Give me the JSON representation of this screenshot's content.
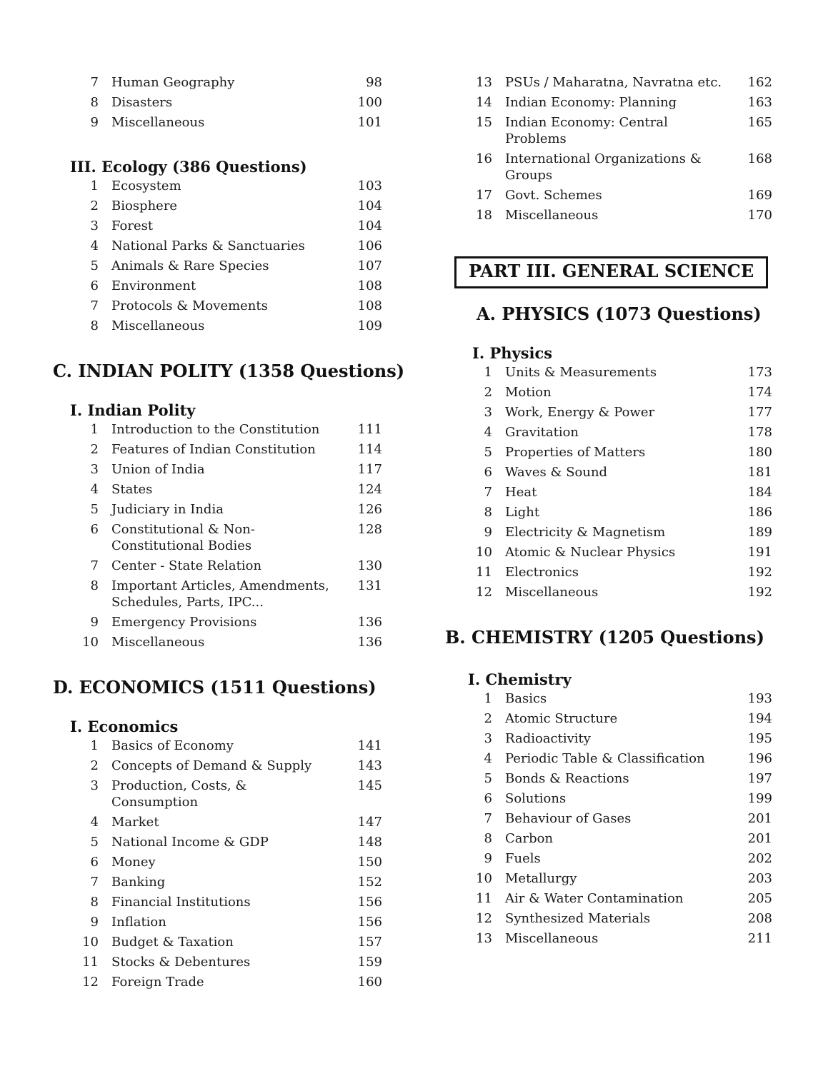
{
  "toc": {
    "columns": [
      {
        "name": "left",
        "blocks": [
          {
            "kind": "items",
            "rows": [
              {
                "num": "7",
                "title": "Human Geography",
                "page": "98"
              },
              {
                "num": "8",
                "title": "Disasters",
                "page": "100"
              },
              {
                "num": "9",
                "title": "Miscellaneous",
                "page": "101"
              }
            ]
          },
          {
            "kind": "h2",
            "text": "III. Ecology (386 Questions)"
          },
          {
            "kind": "items",
            "rows": [
              {
                "num": "1",
                "title": "Ecosystem",
                "page": "103"
              },
              {
                "num": "2",
                "title": "Biosphere",
                "page": "104"
              },
              {
                "num": "3",
                "title": "Forest",
                "page": "104"
              },
              {
                "num": "4",
                "title": "National Parks & Sanctuaries",
                "page": "106"
              },
              {
                "num": "5",
                "title": "Animals & Rare Species",
                "page": "107"
              },
              {
                "num": "6",
                "title": "Environment",
                "page": "108"
              },
              {
                "num": "7",
                "title": "Protocols & Movements",
                "page": "108"
              },
              {
                "num": "8",
                "title": "Miscellaneous",
                "page": "109"
              }
            ]
          },
          {
            "kind": "h1",
            "text": "C. INDIAN POLITY (1358 Questions)"
          },
          {
            "kind": "h2",
            "text": "I. Indian Polity"
          },
          {
            "kind": "items",
            "rows": [
              {
                "num": "1",
                "title": "Introduction to the Constitution",
                "page": "111"
              },
              {
                "num": "2",
                "title": "Features of Indian Constitution",
                "page": "114"
              },
              {
                "num": "3",
                "title": "Union of India",
                "page": "117"
              },
              {
                "num": "4",
                "title": "States",
                "page": "124"
              },
              {
                "num": "5",
                "title": "Judiciary in India",
                "page": "126"
              },
              {
                "num": "6",
                "title": "Constitutional & Non-\nConstitutional Bodies",
                "page": "128"
              },
              {
                "num": "7",
                "title": "Center - State Relation",
                "page": "130"
              },
              {
                "num": "8",
                "title": "Important Articles, Amendments,\nSchedules, Parts, IPC...",
                "page": "131"
              },
              {
                "num": "9",
                "title": "Emergency Provisions",
                "page": "136"
              },
              {
                "num": "10",
                "title": "Miscellaneous",
                "page": "136"
              }
            ]
          },
          {
            "kind": "h1",
            "text": "D. ECONOMICS (1511 Questions)"
          },
          {
            "kind": "h2",
            "text": "I. Economics"
          },
          {
            "kind": "items",
            "rows": [
              {
                "num": "1",
                "title": "Basics of Economy",
                "page": "141"
              },
              {
                "num": "2",
                "title": "Concepts of Demand & Supply",
                "page": "143"
              },
              {
                "num": "3",
                "title": "Production, Costs, &\nConsumption",
                "page": "145"
              },
              {
                "num": "4",
                "title": "Market",
                "page": "147"
              },
              {
                "num": "5",
                "title": "National Income & GDP",
                "page": "148"
              },
              {
                "num": "6",
                "title": "Money",
                "page": "150"
              },
              {
                "num": "7",
                "title": "Banking",
                "page": "152"
              },
              {
                "num": "8",
                "title": "Financial Institutions",
                "page": "156"
              },
              {
                "num": "9",
                "title": "Inflation",
                "page": "156"
              },
              {
                "num": "10",
                "title": "Budget & Taxation",
                "page": "157"
              },
              {
                "num": "11",
                "title": "Stocks & Debentures",
                "page": "159"
              },
              {
                "num": "12",
                "title": "Foreign Trade",
                "page": "160"
              }
            ]
          }
        ]
      },
      {
        "name": "right",
        "blocks": [
          {
            "kind": "items",
            "rows": [
              {
                "num": "13",
                "title": "PSUs / Maharatna, Navratna etc.",
                "page": "162"
              },
              {
                "num": "14",
                "title": "Indian Economy: Planning",
                "page": "163"
              },
              {
                "num": "15",
                "title": "Indian Economy: Central\nProblems",
                "page": "165"
              },
              {
                "num": "16",
                "title": "International Organizations &\nGroups",
                "page": "168"
              },
              {
                "num": "17",
                "title": "Govt. Schemes",
                "page": "169"
              },
              {
                "num": "18",
                "title": "Miscellaneous",
                "page": "170"
              }
            ]
          },
          {
            "kind": "boxed",
            "text": "PART III. GENERAL SCIENCE"
          },
          {
            "kind": "h1",
            "text": "A. PHYSICS (1073 Questions)"
          },
          {
            "kind": "h2",
            "text": "I. Physics"
          },
          {
            "kind": "items",
            "rows": [
              {
                "num": "1",
                "title": "Units & Measurements",
                "page": "173"
              },
              {
                "num": "2",
                "title": "Motion",
                "page": "174"
              },
              {
                "num": "3",
                "title": "Work, Energy & Power",
                "page": "177"
              },
              {
                "num": "4",
                "title": "Gravitation",
                "page": "178"
              },
              {
                "num": "5",
                "title": "Properties of Matters",
                "page": "180"
              },
              {
                "num": "6",
                "title": "Waves & Sound",
                "page": "181"
              },
              {
                "num": "7",
                "title": "Heat",
                "page": "184"
              },
              {
                "num": "8",
                "title": "Light",
                "page": "186"
              },
              {
                "num": "9",
                "title": "Electricity & Magnetism",
                "page": "189"
              },
              {
                "num": "10",
                "title": "Atomic & Nuclear Physics",
                "page": "191"
              },
              {
                "num": "11",
                "title": "Electronics",
                "page": "192"
              },
              {
                "num": "12",
                "title": "Miscellaneous",
                "page": "192"
              }
            ]
          },
          {
            "kind": "h1",
            "text": "B. CHEMISTRY (1205 Questions)"
          },
          {
            "kind": "h2",
            "text": "I. Chemistry"
          },
          {
            "kind": "items",
            "rows": [
              {
                "num": "1",
                "title": "Basics",
                "page": "193"
              },
              {
                "num": "2",
                "title": "Atomic Structure",
                "page": "194"
              },
              {
                "num": "3",
                "title": "Radioactivity",
                "page": "195"
              },
              {
                "num": "4",
                "title": "Periodic Table & Classification",
                "page": "196"
              },
              {
                "num": "5",
                "title": "Bonds & Reactions",
                "page": "197"
              },
              {
                "num": "6",
                "title": "Solutions",
                "page": "199"
              },
              {
                "num": "7",
                "title": "Behaviour of Gases",
                "page": "201"
              },
              {
                "num": "8",
                "title": "Carbon",
                "page": "201"
              },
              {
                "num": "9",
                "title": "Fuels",
                "page": "202"
              },
              {
                "num": "10",
                "title": "Metallurgy",
                "page": "203"
              },
              {
                "num": "11",
                "title": "Air & Water Contamination",
                "page": "205"
              },
              {
                "num": "12",
                "title": "Synthesized Materials",
                "page": "208"
              },
              {
                "num": "13",
                "title": "Miscellaneous",
                "page": "211"
              }
            ]
          }
        ]
      }
    ]
  }
}
